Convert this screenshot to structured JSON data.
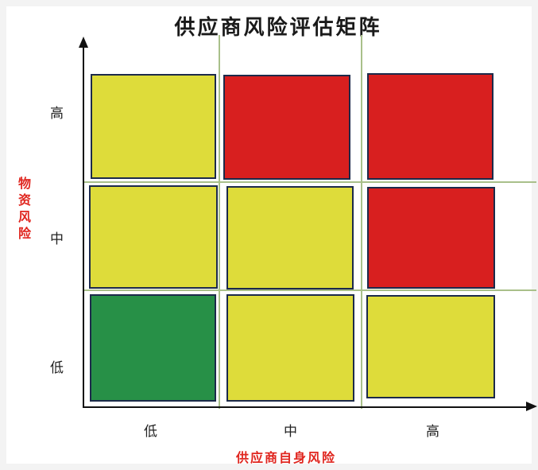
{
  "title": "供应商风险评估矩阵",
  "x_axis": {
    "label": "供应商自身风险",
    "ticks": [
      "低",
      "中",
      "高"
    ]
  },
  "y_axis": {
    "label": "物资风险",
    "ticks": [
      "高",
      "中",
      "低"
    ]
  },
  "colors": {
    "green": "#279047",
    "yellow": "#dedc3a",
    "red": "#d81f1f",
    "axis_label": "#e0261f"
  },
  "matrix": [
    [
      "yellow",
      "red",
      "red"
    ],
    [
      "yellow",
      "yellow",
      "red"
    ],
    [
      "green",
      "yellow",
      "yellow"
    ]
  ]
}
